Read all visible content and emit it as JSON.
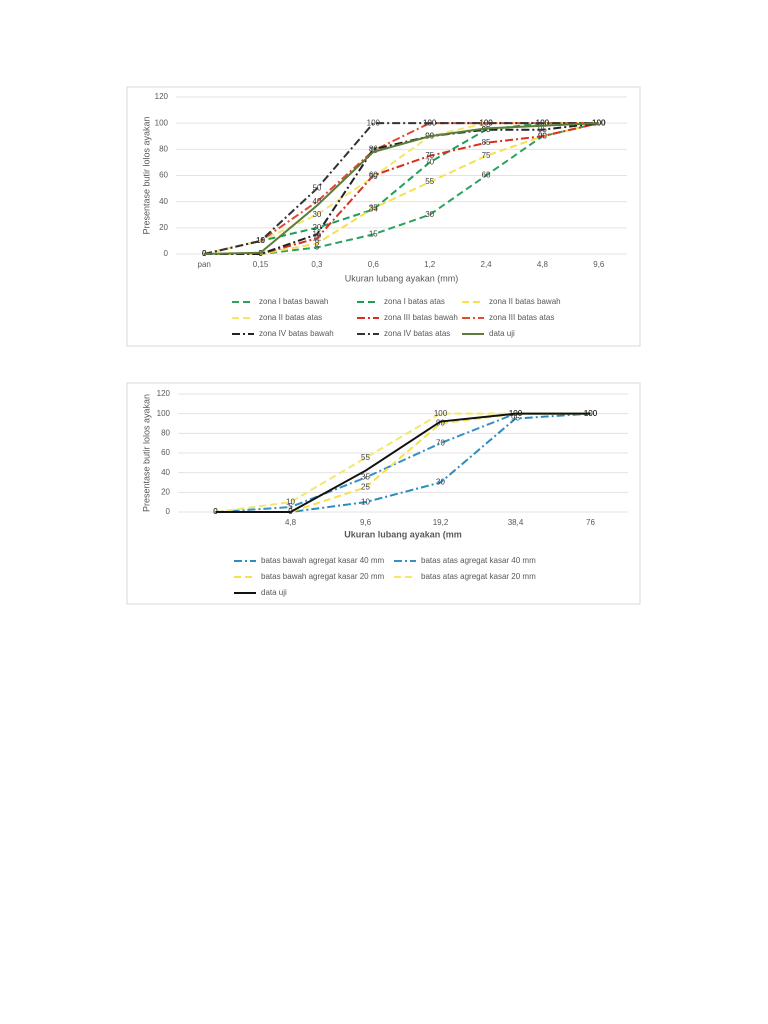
{
  "chart_data": [
    {
      "type": "line",
      "x_label": "Ukuran lubang ayakan (mm)",
      "y_label": "Presentase butir lolos ayakan",
      "categories": [
        "pan",
        "0,15",
        "0,3",
        "0,6",
        "1,2",
        "2,4",
        "4,8",
        "9,6"
      ],
      "ylim": [
        0,
        120
      ],
      "yticks": [
        0,
        20,
        40,
        60,
        80,
        100,
        120
      ],
      "grid": true,
      "series": [
        {
          "name": "zona I batas bawah",
          "color": "#2ca25f",
          "dash": "dash",
          "labels": true,
          "values": [
            0,
            0,
            5,
            15,
            30,
            60,
            90,
            100
          ]
        },
        {
          "name": "zona I batas atas",
          "color": "#1b9e5a",
          "dash": "dash",
          "labels": true,
          "values": [
            0,
            10,
            20,
            34,
            70,
            95,
            100,
            100
          ]
        },
        {
          "name": "zona II batas bawah",
          "color": "#f7e04b",
          "dash": "dash",
          "labels": true,
          "values": [
            0,
            0,
            8,
            35,
            55,
            75,
            90,
            100
          ]
        },
        {
          "name": "zona II batas atas",
          "color": "#f2e86a",
          "dash": "dash",
          "labels": true,
          "values": [
            0,
            10,
            30,
            59,
            90,
            100,
            100,
            100
          ]
        },
        {
          "name": "zona III batas bawah",
          "color": "#d7301f",
          "dash": "dashdot",
          "labels": true,
          "values": [
            0,
            0,
            12,
            60,
            75,
            85,
            90,
            100
          ]
        },
        {
          "name": "zona III batas atas",
          "color": "#e34a33",
          "dash": "dashdot",
          "labels": true,
          "values": [
            0,
            10,
            40,
            79,
            100,
            100,
            100,
            100
          ]
        },
        {
          "name": "zona IV batas bawah",
          "color": "#222222",
          "dash": "dashdot",
          "labels": true,
          "values": [
            0,
            0,
            15,
            80,
            90,
            95,
            95,
            100
          ]
        },
        {
          "name": "zona IV batas atas",
          "color": "#333333",
          "dash": "dashdot",
          "labels": true,
          "values": [
            0,
            10,
            50,
            100,
            100,
            100,
            100,
            100
          ]
        },
        {
          "name": "data uji",
          "color": "#5a7d3a",
          "dash": "solid",
          "labels": false,
          "values": [
            0,
            1,
            37,
            78,
            90,
            96,
            98,
            100
          ]
        }
      ]
    },
    {
      "type": "line",
      "x_label": "Ukuran lubang ayakan (mm",
      "y_label": "Presentase butir lolos ayakan",
      "categories": [
        null,
        "4,8",
        "9,6",
        "19,2",
        "38,4",
        "76"
      ],
      "ylim": [
        0,
        120
      ],
      "yticks": [
        0,
        20,
        40,
        60,
        80,
        100,
        120
      ],
      "grid": true,
      "series": [
        {
          "name": "batas bawah agregat kasar 40 mm",
          "color": "#2b8cbe",
          "dash": "dashdot",
          "labels": true,
          "values": [
            0,
            0,
            10,
            30,
            95,
            100
          ]
        },
        {
          "name": "batas atas agregat kasar 40 mm",
          "color": "#3690c0",
          "dash": "dashdot",
          "labels": true,
          "values": [
            0,
            5,
            35,
            70,
            100,
            100
          ]
        },
        {
          "name": "batas bawah agregat kasar 20 mm",
          "color": "#f7e04b",
          "dash": "dash",
          "labels": true,
          "values": [
            0,
            0,
            25,
            90,
            100,
            100
          ]
        },
        {
          "name": "batas atas agregat kasar 20 mm",
          "color": "#f2e86a",
          "dash": "dash",
          "labels": true,
          "values": [
            0,
            10,
            55,
            100,
            100,
            100
          ]
        },
        {
          "name": "data uji",
          "color": "#111111",
          "dash": "solid",
          "labels": false,
          "values": [
            0,
            0,
            42,
            92,
            100,
            100
          ]
        }
      ]
    }
  ]
}
